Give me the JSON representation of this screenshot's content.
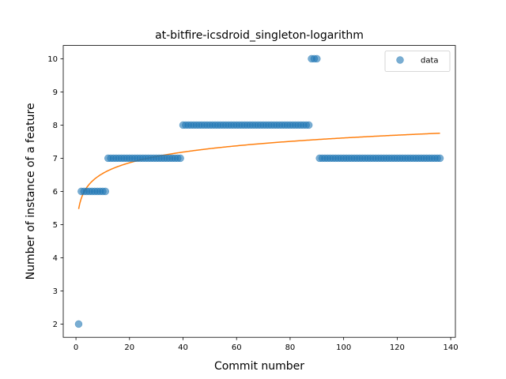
{
  "chart_data": {
    "type": "scatter",
    "title": "at-bitfire-icsdroid_singleton-logarithm",
    "xlabel": "Commit number",
    "ylabel": "Number of instance of a feature",
    "xlim": [
      -4.75,
      141.75
    ],
    "ylim": [
      1.6,
      10.4
    ],
    "xticks": [
      0,
      20,
      40,
      60,
      80,
      100,
      120,
      140
    ],
    "yticks": [
      2,
      3,
      4,
      5,
      6,
      7,
      8,
      9,
      10
    ],
    "legend": {
      "position": "top-right",
      "entries": [
        "data"
      ]
    },
    "colors": {
      "data": "#1f77b4",
      "fit": "#ff7f0e"
    },
    "series": [
      {
        "name": "data",
        "kind": "scatter",
        "segments": [
          {
            "x_start": 1,
            "x_end": 1,
            "y": 2
          },
          {
            "x_start": 2,
            "x_end": 11,
            "y": 6
          },
          {
            "x_start": 12,
            "x_end": 39,
            "y": 7
          },
          {
            "x_start": 40,
            "x_end": 87,
            "y": 8
          },
          {
            "x_start": 88,
            "x_end": 90,
            "y": 10
          },
          {
            "x_start": 91,
            "x_end": 136,
            "y": 7
          }
        ]
      },
      {
        "name": "fit",
        "kind": "line",
        "model": "a + b*ln(x)",
        "a": 5.47,
        "b": 0.465,
        "x_range": [
          1,
          136
        ]
      }
    ]
  }
}
